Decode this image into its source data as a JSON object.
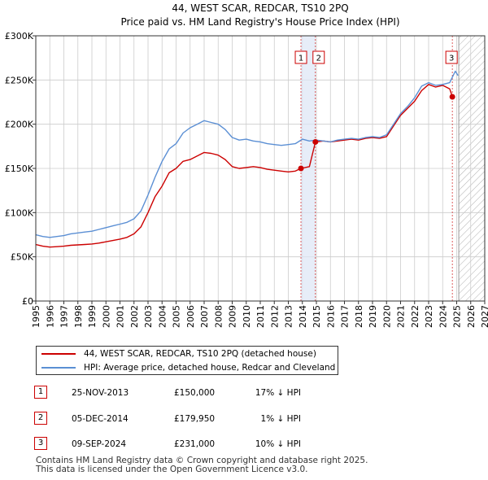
{
  "chart_data": {
    "type": "line",
    "title": "44, WEST SCAR, REDCAR, TS10 2PQ",
    "subtitle": "Price paid vs. HM Land Registry's House Price Index (HPI)",
    "xlim": [
      1995,
      2027
    ],
    "ylim": [
      0,
      300000
    ],
    "x_ticks": [
      1995,
      1996,
      1997,
      1998,
      1999,
      2000,
      2001,
      2002,
      2003,
      2004,
      2005,
      2006,
      2007,
      2008,
      2009,
      2010,
      2011,
      2012,
      2013,
      2014,
      2015,
      2016,
      2017,
      2018,
      2019,
      2020,
      2021,
      2022,
      2023,
      2024,
      2025,
      2026,
      2027
    ],
    "y_ticks": [
      {
        "value": 0,
        "label": "£0"
      },
      {
        "value": 50000,
        "label": "£50K"
      },
      {
        "value": 100000,
        "label": "£100K"
      },
      {
        "value": 150000,
        "label": "£150K"
      },
      {
        "value": 200000,
        "label": "£200K"
      },
      {
        "value": 250000,
        "label": "£250K"
      },
      {
        "value": 300000,
        "label": "£300K"
      }
    ],
    "grid": true,
    "hatched_future_from": 2025.15,
    "series": [
      {
        "name": "44, WEST SCAR, REDCAR, TS10 2PQ (detached house)",
        "color": "#cc0000",
        "x": [
          1995.0,
          1995.5,
          1996.0,
          1996.5,
          1997.0,
          1997.5,
          1998.0,
          1998.5,
          1999.0,
          1999.5,
          2000.0,
          2000.5,
          2001.0,
          2001.5,
          2002.0,
          2002.5,
          2003.0,
          2003.5,
          2004.0,
          2004.5,
          2005.0,
          2005.5,
          2006.0,
          2006.5,
          2007.0,
          2007.5,
          2008.0,
          2008.5,
          2009.0,
          2009.5,
          2010.0,
          2010.5,
          2011.0,
          2011.5,
          2012.0,
          2012.5,
          2013.0,
          2013.5,
          2013.9,
          2014.5,
          2014.93,
          2015.5,
          2016.0,
          2016.5,
          2017.0,
          2017.5,
          2018.0,
          2018.5,
          2019.0,
          2019.5,
          2020.0,
          2020.5,
          2021.0,
          2021.5,
          2022.0,
          2022.5,
          2023.0,
          2023.5,
          2024.0,
          2024.5,
          2024.69,
          2024.85
        ],
        "y": [
          64000,
          62000,
          61000,
          61500,
          62000,
          63000,
          63500,
          64000,
          64500,
          65500,
          67000,
          68500,
          70000,
          72000,
          76000,
          84000,
          100000,
          118000,
          130000,
          145000,
          150000,
          158000,
          160000,
          164000,
          168000,
          167000,
          165000,
          160000,
          152000,
          150000,
          151000,
          152000,
          151000,
          149000,
          148000,
          147000,
          146000,
          147000,
          150000,
          152000,
          179950,
          181000,
          180000,
          181000,
          182000,
          183000,
          182000,
          184000,
          185000,
          184000,
          186000,
          198000,
          210000,
          218000,
          226000,
          238000,
          245000,
          242000,
          244000,
          240000,
          231000,
          232000
        ]
      },
      {
        "name": "HPI: Average price, detached house, Redcar and Cleveland",
        "color": "#5b8fd4",
        "x": [
          1995.0,
          1995.5,
          1996.0,
          1996.5,
          1997.0,
          1997.5,
          1998.0,
          1998.5,
          1999.0,
          1999.5,
          2000.0,
          2000.5,
          2001.0,
          2001.5,
          2002.0,
          2002.5,
          2003.0,
          2003.5,
          2004.0,
          2004.5,
          2005.0,
          2005.5,
          2006.0,
          2006.5,
          2007.0,
          2007.5,
          2008.0,
          2008.5,
          2009.0,
          2009.5,
          2010.0,
          2010.5,
          2011.0,
          2011.5,
          2012.0,
          2012.5,
          2013.0,
          2013.5,
          2014.0,
          2014.5,
          2015.0,
          2015.5,
          2016.0,
          2016.5,
          2017.0,
          2017.5,
          2018.0,
          2018.5,
          2019.0,
          2019.5,
          2020.0,
          2020.5,
          2021.0,
          2021.5,
          2022.0,
          2022.5,
          2023.0,
          2023.5,
          2024.0,
          2024.5,
          2024.9,
          2025.1
        ],
        "y": [
          75000,
          73000,
          72000,
          73000,
          74000,
          76000,
          77000,
          78000,
          79000,
          81000,
          83000,
          85000,
          87000,
          89000,
          93000,
          102000,
          120000,
          140000,
          158000,
          172000,
          178000,
          190000,
          196000,
          200000,
          204000,
          202000,
          200000,
          194000,
          185000,
          182000,
          183000,
          181000,
          180000,
          178000,
          177000,
          176000,
          177000,
          178000,
          183000,
          181000,
          182000,
          181000,
          180000,
          182000,
          183000,
          184000,
          183000,
          185000,
          186000,
          185000,
          188000,
          200000,
          212000,
          220000,
          230000,
          243000,
          247000,
          244000,
          245000,
          247000,
          260000,
          255000
        ]
      }
    ],
    "sales": [
      {
        "label": "1",
        "x": 2013.9,
        "y": 150000
      },
      {
        "label": "2",
        "x": 2014.93,
        "y": 179950
      },
      {
        "label": "3",
        "x": 2024.69,
        "y": 231000
      }
    ]
  },
  "legend": {
    "property_label": "44, WEST SCAR, REDCAR, TS10 2PQ (detached house)",
    "hpi_label": "HPI: Average price, detached house, Redcar and Cleveland"
  },
  "sales_table": [
    {
      "num": "1",
      "date": "25-NOV-2013",
      "price": "£150,000",
      "hpi": "17% ↓ HPI"
    },
    {
      "num": "2",
      "date": "05-DEC-2014",
      "price": "£179,950",
      "hpi": "1% ↓ HPI"
    },
    {
      "num": "3",
      "date": "09-SEP-2024",
      "price": "£231,000",
      "hpi": "10% ↓ HPI"
    }
  ],
  "footer": {
    "line1": "Contains HM Land Registry data © Crown copyright and database right 2025.",
    "line2": "This data is licensed under the Open Government Licence v3.0."
  },
  "colors": {
    "property": "#cc0000",
    "hpi": "#5b8fd4",
    "highlight": "#dde6f5",
    "grid": "#cccccc"
  }
}
